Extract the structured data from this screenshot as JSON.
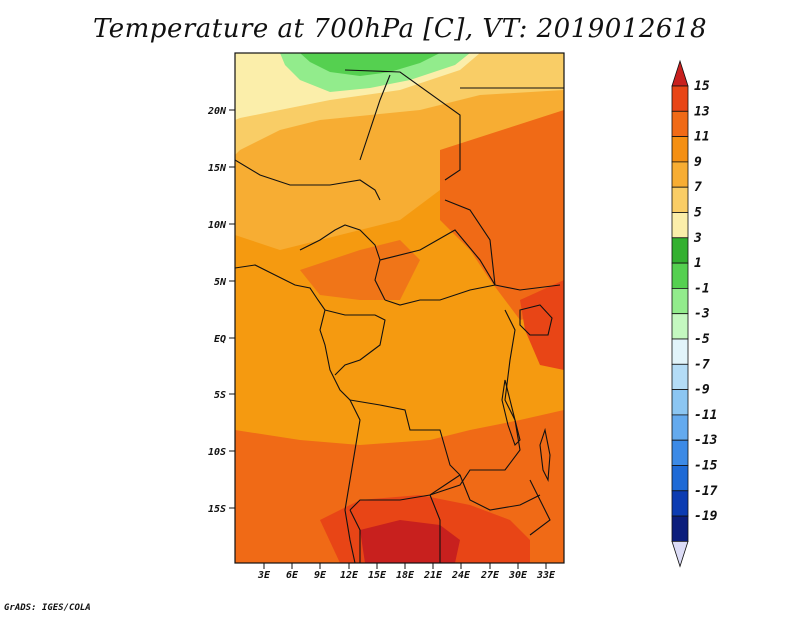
{
  "title": "Temperature at 700hPa [C], VT: 2019012618",
  "credit": "GrADS: IGES/COLA",
  "map": {
    "lat_labels": [
      "20N",
      "15N",
      "10N",
      "5N",
      "EQ",
      "5S",
      "10S",
      "15S"
    ],
    "lon_labels": [
      "3E",
      "6E",
      "9E",
      "12E",
      "15E",
      "18E",
      "21E",
      "24E",
      "27E",
      "30E",
      "33E"
    ]
  },
  "colorbar": {
    "labels": [
      "15",
      "13",
      "11",
      "9",
      "7",
      "5",
      "3",
      "1",
      "-1",
      "-3",
      "-5",
      "-7",
      "-9",
      "-11",
      "-13",
      "-15",
      "-17",
      "-19"
    ],
    "colors": [
      "#c8201e",
      "#e84516",
      "#f06a16",
      "#f48f12",
      "#f7ad33",
      "#f9cd66",
      "#fbeeaa",
      "#33b030",
      "#55d050",
      "#92ec8c",
      "#c4f8c0",
      "#e2f4fa",
      "#b4dcf6",
      "#8cc6f2",
      "#64aaee",
      "#3c8ae6",
      "#1e6ad6",
      "#0c3cb2",
      "#0c1e7c",
      "#dcdcf6"
    ]
  },
  "legend_regions": {
    "cool_north": "green (-1 to 3 C)",
    "cold_north": "pale yellow (3-7 C)",
    "warm_south": "red (13-15 C)"
  }
}
